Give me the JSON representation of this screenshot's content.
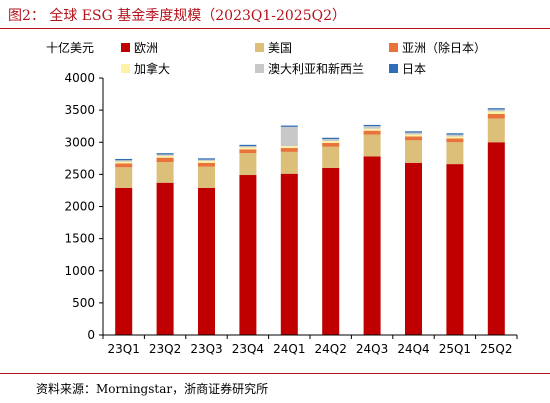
{
  "figure": {
    "title": "图2：  全球 ESG 基金季度规模（2023Q1-2025Q2）",
    "source": "资料来源：Morningstar，浙商证券研究所"
  },
  "chart_data": {
    "type": "bar",
    "stacked": true,
    "unit_label": "十亿美元",
    "ylim": [
      0,
      4000
    ],
    "ytick_step": 500,
    "yticks": [
      "0",
      "500",
      "1000",
      "1500",
      "2000",
      "2500",
      "3000",
      "3500",
      "4000"
    ],
    "categories": [
      "23Q1",
      "23Q2",
      "23Q3",
      "23Q4",
      "24Q1",
      "24Q2",
      "24Q3",
      "24Q4",
      "25Q1",
      "25Q2"
    ],
    "series": [
      {
        "name": "欧洲",
        "color": "#c00000",
        "values": [
          2290,
          2370,
          2290,
          2490,
          2510,
          2600,
          2780,
          2680,
          2660,
          3000
        ]
      },
      {
        "name": "美国",
        "color": "#dcc07a",
        "values": [
          320,
          320,
          330,
          340,
          340,
          330,
          340,
          350,
          340,
          370
        ]
      },
      {
        "name": "亚洲（除日本）",
        "color": "#e8743b",
        "values": [
          60,
          70,
          60,
          60,
          60,
          60,
          60,
          60,
          60,
          70
        ]
      },
      {
        "name": "加拿大",
        "color": "#fff2a8",
        "values": [
          30,
          30,
          30,
          30,
          30,
          30,
          30,
          30,
          30,
          40
        ]
      },
      {
        "name": "澳大利亚和新西兰",
        "color": "#c8c8c8",
        "values": [
          20,
          20,
          20,
          20,
          300,
          30,
          40,
          30,
          30,
          30
        ]
      },
      {
        "name": "日本",
        "color": "#2f6fb7",
        "values": [
          20,
          20,
          20,
          20,
          20,
          20,
          20,
          20,
          20,
          20
        ]
      }
    ],
    "legend_position": "top",
    "grid": false
  }
}
